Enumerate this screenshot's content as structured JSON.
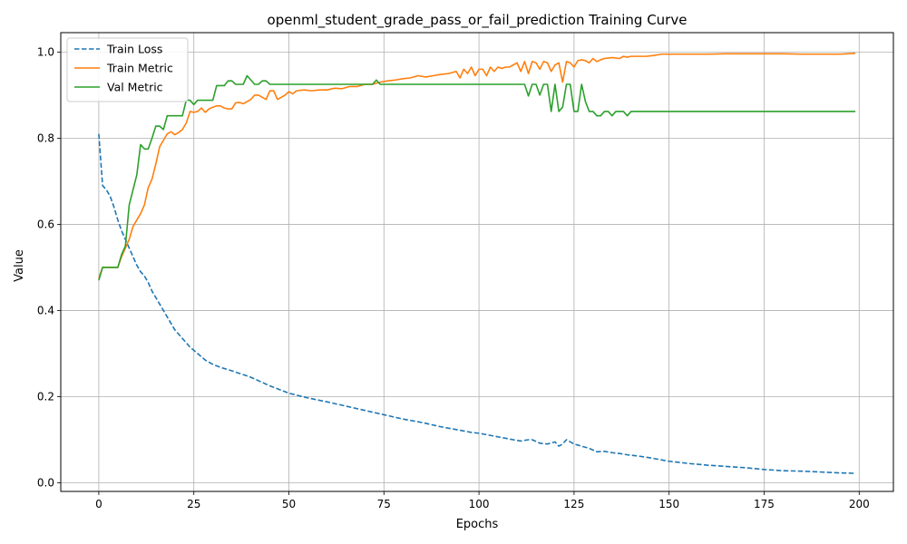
{
  "chart_data": {
    "type": "line",
    "title": "openml_student_grade_pass_or_fail_prediction Training Curve",
    "xlabel": "Epochs",
    "ylabel": "Value",
    "xlim": [
      -10,
      209
    ],
    "ylim": [
      -0.02,
      1.045
    ],
    "xticks": [
      0,
      25,
      50,
      75,
      100,
      125,
      150,
      175,
      200
    ],
    "yticks": [
      0.0,
      0.2,
      0.4,
      0.6,
      0.8,
      1.0
    ],
    "grid": true,
    "legend_position": "top-left",
    "series": [
      {
        "name": "Train Loss",
        "color": "#1f77b4",
        "style": "dashed",
        "points": [
          [
            0,
            0.81
          ],
          [
            1,
            0.69
          ],
          [
            2,
            0.68
          ],
          [
            3,
            0.665
          ],
          [
            4,
            0.64
          ],
          [
            5,
            0.61
          ],
          [
            6,
            0.585
          ],
          [
            7,
            0.565
          ],
          [
            8,
            0.545
          ],
          [
            9,
            0.525
          ],
          [
            10,
            0.505
          ],
          [
            11,
            0.49
          ],
          [
            12,
            0.48
          ],
          [
            13,
            0.465
          ],
          [
            14,
            0.445
          ],
          [
            15,
            0.43
          ],
          [
            16,
            0.415
          ],
          [
            17,
            0.4
          ],
          [
            18,
            0.385
          ],
          [
            19,
            0.37
          ],
          [
            20,
            0.355
          ],
          [
            22,
            0.335
          ],
          [
            24,
            0.315
          ],
          [
            26,
            0.3
          ],
          [
            28,
            0.285
          ],
          [
            30,
            0.275
          ],
          [
            32,
            0.268
          ],
          [
            35,
            0.26
          ],
          [
            40,
            0.245
          ],
          [
            45,
            0.225
          ],
          [
            50,
            0.208
          ],
          [
            55,
            0.197
          ],
          [
            60,
            0.188
          ],
          [
            65,
            0.178
          ],
          [
            70,
            0.168
          ],
          [
            75,
            0.158
          ],
          [
            80,
            0.148
          ],
          [
            85,
            0.14
          ],
          [
            90,
            0.13
          ],
          [
            95,
            0.122
          ],
          [
            98,
            0.117
          ],
          [
            100,
            0.115
          ],
          [
            103,
            0.11
          ],
          [
            106,
            0.105
          ],
          [
            109,
            0.1
          ],
          [
            111,
            0.097
          ],
          [
            113,
            0.1
          ],
          [
            114,
            0.1
          ],
          [
            116,
            0.092
          ],
          [
            118,
            0.09
          ],
          [
            120,
            0.095
          ],
          [
            121,
            0.085
          ],
          [
            122,
            0.09
          ],
          [
            123,
            0.1
          ],
          [
            125,
            0.09
          ],
          [
            127,
            0.085
          ],
          [
            129,
            0.08
          ],
          [
            131,
            0.072
          ],
          [
            133,
            0.073
          ],
          [
            135,
            0.07
          ],
          [
            137,
            0.068
          ],
          [
            139,
            0.065
          ],
          [
            142,
            0.062
          ],
          [
            145,
            0.058
          ],
          [
            150,
            0.05
          ],
          [
            155,
            0.045
          ],
          [
            160,
            0.041
          ],
          [
            165,
            0.038
          ],
          [
            170,
            0.035
          ],
          [
            175,
            0.031
          ],
          [
            180,
            0.028
          ],
          [
            185,
            0.027
          ],
          [
            190,
            0.025
          ],
          [
            195,
            0.023
          ],
          [
            199,
            0.022
          ]
        ]
      },
      {
        "name": "Train Metric",
        "color": "#ff7f0e",
        "style": "solid",
        "points": [
          [
            0,
            0.475
          ],
          [
            1,
            0.5
          ],
          [
            2,
            0.5
          ],
          [
            3,
            0.5
          ],
          [
            4,
            0.5
          ],
          [
            5,
            0.5
          ],
          [
            6,
            0.525
          ],
          [
            7,
            0.545
          ],
          [
            8,
            0.565
          ],
          [
            9,
            0.595
          ],
          [
            10,
            0.61
          ],
          [
            11,
            0.625
          ],
          [
            12,
            0.645
          ],
          [
            13,
            0.685
          ],
          [
            14,
            0.705
          ],
          [
            15,
            0.74
          ],
          [
            16,
            0.78
          ],
          [
            17,
            0.795
          ],
          [
            18,
            0.81
          ],
          [
            19,
            0.815
          ],
          [
            20,
            0.808
          ],
          [
            21,
            0.813
          ],
          [
            22,
            0.82
          ],
          [
            23,
            0.835
          ],
          [
            24,
            0.862
          ],
          [
            25,
            0.86
          ],
          [
            26,
            0.862
          ],
          [
            27,
            0.87
          ],
          [
            28,
            0.86
          ],
          [
            29,
            0.868
          ],
          [
            30,
            0.872
          ],
          [
            31,
            0.875
          ],
          [
            32,
            0.875
          ],
          [
            33,
            0.87
          ],
          [
            34,
            0.868
          ],
          [
            35,
            0.868
          ],
          [
            36,
            0.882
          ],
          [
            37,
            0.883
          ],
          [
            38,
            0.88
          ],
          [
            39,
            0.885
          ],
          [
            40,
            0.89
          ],
          [
            41,
            0.9
          ],
          [
            42,
            0.9
          ],
          [
            43,
            0.895
          ],
          [
            44,
            0.89
          ],
          [
            45,
            0.91
          ],
          [
            46,
            0.91
          ],
          [
            47,
            0.89
          ],
          [
            48,
            0.895
          ],
          [
            49,
            0.9
          ],
          [
            50,
            0.908
          ],
          [
            51,
            0.903
          ],
          [
            52,
            0.91
          ],
          [
            54,
            0.912
          ],
          [
            56,
            0.91
          ],
          [
            58,
            0.912
          ],
          [
            60,
            0.912
          ],
          [
            62,
            0.916
          ],
          [
            64,
            0.915
          ],
          [
            66,
            0.92
          ],
          [
            68,
            0.92
          ],
          [
            70,
            0.925
          ],
          [
            72,
            0.925
          ],
          [
            74,
            0.93
          ],
          [
            76,
            0.933
          ],
          [
            78,
            0.935
          ],
          [
            80,
            0.938
          ],
          [
            82,
            0.94
          ],
          [
            84,
            0.945
          ],
          [
            86,
            0.942
          ],
          [
            88,
            0.945
          ],
          [
            90,
            0.948
          ],
          [
            92,
            0.95
          ],
          [
            94,
            0.955
          ],
          [
            95,
            0.94
          ],
          [
            96,
            0.96
          ],
          [
            97,
            0.95
          ],
          [
            98,
            0.965
          ],
          [
            99,
            0.945
          ],
          [
            100,
            0.96
          ],
          [
            101,
            0.96
          ],
          [
            102,
            0.945
          ],
          [
            103,
            0.965
          ],
          [
            104,
            0.955
          ],
          [
            105,
            0.965
          ],
          [
            106,
            0.962
          ],
          [
            107,
            0.965
          ],
          [
            108,
            0.965
          ],
          [
            109,
            0.97
          ],
          [
            110,
            0.975
          ],
          [
            111,
            0.955
          ],
          [
            112,
            0.978
          ],
          [
            113,
            0.95
          ],
          [
            114,
            0.978
          ],
          [
            115,
            0.975
          ],
          [
            116,
            0.96
          ],
          [
            117,
            0.978
          ],
          [
            118,
            0.975
          ],
          [
            119,
            0.955
          ],
          [
            120,
            0.97
          ],
          [
            121,
            0.975
          ],
          [
            122,
            0.93
          ],
          [
            123,
            0.978
          ],
          [
            124,
            0.975
          ],
          [
            125,
            0.965
          ],
          [
            126,
            0.98
          ],
          [
            127,
            0.982
          ],
          [
            128,
            0.98
          ],
          [
            129,
            0.975
          ],
          [
            130,
            0.985
          ],
          [
            131,
            0.978
          ],
          [
            132,
            0.982
          ],
          [
            133,
            0.985
          ],
          [
            135,
            0.987
          ],
          [
            137,
            0.985
          ],
          [
            138,
            0.99
          ],
          [
            139,
            0.988
          ],
          [
            140,
            0.99
          ],
          [
            142,
            0.99
          ],
          [
            144,
            0.99
          ],
          [
            146,
            0.992
          ],
          [
            148,
            0.995
          ],
          [
            150,
            0.995
          ],
          [
            155,
            0.995
          ],
          [
            160,
            0.995
          ],
          [
            165,
            0.996
          ],
          [
            170,
            0.996
          ],
          [
            175,
            0.996
          ],
          [
            180,
            0.996
          ],
          [
            185,
            0.995
          ],
          [
            190,
            0.995
          ],
          [
            195,
            0.995
          ],
          [
            199,
            0.997
          ]
        ]
      },
      {
        "name": "Val Metric",
        "color": "#2ca02c",
        "style": "solid",
        "points": [
          [
            0,
            0.47
          ],
          [
            1,
            0.5
          ],
          [
            2,
            0.5
          ],
          [
            3,
            0.5
          ],
          [
            4,
            0.5
          ],
          [
            5,
            0.5
          ],
          [
            6,
            0.53
          ],
          [
            7,
            0.55
          ],
          [
            8,
            0.645
          ],
          [
            9,
            0.68
          ],
          [
            10,
            0.715
          ],
          [
            11,
            0.785
          ],
          [
            12,
            0.775
          ],
          [
            13,
            0.775
          ],
          [
            14,
            0.8
          ],
          [
            15,
            0.828
          ],
          [
            16,
            0.828
          ],
          [
            17,
            0.82
          ],
          [
            18,
            0.852
          ],
          [
            19,
            0.852
          ],
          [
            20,
            0.852
          ],
          [
            21,
            0.852
          ],
          [
            22,
            0.852
          ],
          [
            23,
            0.888
          ],
          [
            24,
            0.888
          ],
          [
            25,
            0.878
          ],
          [
            26,
            0.888
          ],
          [
            27,
            0.888
          ],
          [
            28,
            0.888
          ],
          [
            29,
            0.888
          ],
          [
            30,
            0.888
          ],
          [
            31,
            0.922
          ],
          [
            32,
            0.922
          ],
          [
            33,
            0.922
          ],
          [
            34,
            0.933
          ],
          [
            35,
            0.933
          ],
          [
            36,
            0.925
          ],
          [
            37,
            0.925
          ],
          [
            38,
            0.925
          ],
          [
            39,
            0.945
          ],
          [
            40,
            0.935
          ],
          [
            41,
            0.925
          ],
          [
            42,
            0.925
          ],
          [
            43,
            0.933
          ],
          [
            44,
            0.933
          ],
          [
            45,
            0.925
          ],
          [
            50,
            0.925
          ],
          [
            60,
            0.925
          ],
          [
            70,
            0.925
          ],
          [
            72,
            0.925
          ],
          [
            73,
            0.935
          ],
          [
            74,
            0.925
          ],
          [
            80,
            0.925
          ],
          [
            90,
            0.925
          ],
          [
            100,
            0.925
          ],
          [
            110,
            0.925
          ],
          [
            112,
            0.925
          ],
          [
            113,
            0.898
          ],
          [
            114,
            0.925
          ],
          [
            115,
            0.925
          ],
          [
            116,
            0.9
          ],
          [
            117,
            0.925
          ],
          [
            118,
            0.925
          ],
          [
            119,
            0.862
          ],
          [
            120,
            0.925
          ],
          [
            121,
            0.862
          ],
          [
            122,
            0.872
          ],
          [
            123,
            0.925
          ],
          [
            124,
            0.925
          ],
          [
            125,
            0.862
          ],
          [
            126,
            0.862
          ],
          [
            127,
            0.925
          ],
          [
            128,
            0.885
          ],
          [
            129,
            0.862
          ],
          [
            130,
            0.862
          ],
          [
            131,
            0.852
          ],
          [
            132,
            0.852
          ],
          [
            133,
            0.862
          ],
          [
            134,
            0.862
          ],
          [
            135,
            0.852
          ],
          [
            136,
            0.862
          ],
          [
            137,
            0.862
          ],
          [
            138,
            0.862
          ],
          [
            139,
            0.852
          ],
          [
            140,
            0.862
          ],
          [
            150,
            0.862
          ],
          [
            160,
            0.862
          ],
          [
            170,
            0.862
          ],
          [
            180,
            0.862
          ],
          [
            190,
            0.862
          ],
          [
            199,
            0.862
          ]
        ]
      }
    ]
  }
}
